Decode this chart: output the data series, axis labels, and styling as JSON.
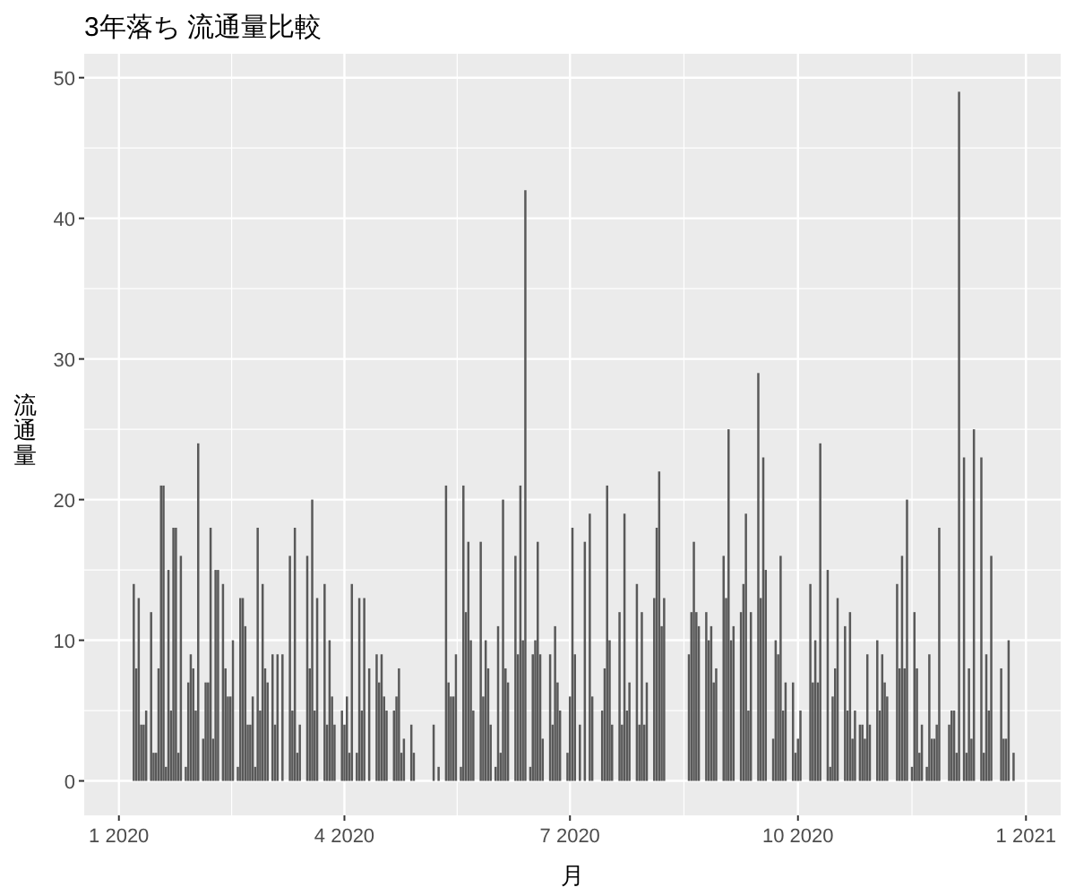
{
  "chart_data": {
    "type": "bar",
    "title": "3年落ち 流通量比較",
    "xlabel": "月",
    "ylabel": "流通量",
    "x": [
      "2020-01-07",
      "2020-01-08",
      "2020-01-09",
      "2020-01-10",
      "2020-01-11",
      "2020-01-12",
      "2020-01-14",
      "2020-01-15",
      "2020-01-16",
      "2020-01-17",
      "2020-01-18",
      "2020-01-19",
      "2020-01-20",
      "2020-01-21",
      "2020-01-22",
      "2020-01-23",
      "2020-01-24",
      "2020-01-25",
      "2020-01-26",
      "2020-01-28",
      "2020-01-29",
      "2020-01-30",
      "2020-01-31",
      "2020-02-01",
      "2020-02-02",
      "2020-02-04",
      "2020-02-05",
      "2020-02-06",
      "2020-02-07",
      "2020-02-08",
      "2020-02-09",
      "2020-02-10",
      "2020-02-12",
      "2020-02-13",
      "2020-02-14",
      "2020-02-15",
      "2020-02-16",
      "2020-02-18",
      "2020-02-19",
      "2020-02-20",
      "2020-02-21",
      "2020-02-22",
      "2020-02-23",
      "2020-02-24",
      "2020-02-25",
      "2020-02-26",
      "2020-02-27",
      "2020-02-28",
      "2020-02-29",
      "2020-03-01",
      "2020-03-03",
      "2020-03-04",
      "2020-03-05",
      "2020-03-07",
      "2020-03-10",
      "2020-03-11",
      "2020-03-12",
      "2020-03-13",
      "2020-03-14",
      "2020-03-17",
      "2020-03-18",
      "2020-03-19",
      "2020-03-20",
      "2020-03-21",
      "2020-03-24",
      "2020-03-25",
      "2020-03-26",
      "2020-03-27",
      "2020-03-28",
      "2020-03-31",
      "2020-04-01",
      "2020-04-02",
      "2020-04-03",
      "2020-04-04",
      "2020-04-06",
      "2020-04-07",
      "2020-04-08",
      "2020-04-09",
      "2020-04-11",
      "2020-04-14",
      "2020-04-15",
      "2020-04-16",
      "2020-04-17",
      "2020-04-18",
      "2020-04-21",
      "2020-04-22",
      "2020-04-23",
      "2020-04-24",
      "2020-04-25",
      "2020-04-28",
      "2020-04-29",
      "2020-05-07",
      "2020-05-09",
      "2020-05-12",
      "2020-05-13",
      "2020-05-14",
      "2020-05-15",
      "2020-05-16",
      "2020-05-18",
      "2020-05-19",
      "2020-05-20",
      "2020-05-21",
      "2020-05-22",
      "2020-05-23",
      "2020-05-26",
      "2020-05-27",
      "2020-05-28",
      "2020-05-29",
      "2020-05-30",
      "2020-06-01",
      "2020-06-02",
      "2020-06-03",
      "2020-06-04",
      "2020-06-05",
      "2020-06-06",
      "2020-06-09",
      "2020-06-10",
      "2020-06-11",
      "2020-06-12",
      "2020-06-13",
      "2020-06-15",
      "2020-06-16",
      "2020-06-17",
      "2020-06-18",
      "2020-06-19",
      "2020-06-20",
      "2020-06-23",
      "2020-06-24",
      "2020-06-25",
      "2020-06-26",
      "2020-06-27",
      "2020-06-30",
      "2020-07-01",
      "2020-07-02",
      "2020-07-03",
      "2020-07-05",
      "2020-07-07",
      "2020-07-09",
      "2020-07-10",
      "2020-07-14",
      "2020-07-15",
      "2020-07-16",
      "2020-07-17",
      "2020-07-18",
      "2020-07-21",
      "2020-07-22",
      "2020-07-23",
      "2020-07-24",
      "2020-07-25",
      "2020-07-28",
      "2020-07-29",
      "2020-07-30",
      "2020-07-31",
      "2020-08-01",
      "2020-08-04",
      "2020-08-05",
      "2020-08-06",
      "2020-08-07",
      "2020-08-08",
      "2020-08-18",
      "2020-08-19",
      "2020-08-20",
      "2020-08-21",
      "2020-08-22",
      "2020-08-25",
      "2020-08-26",
      "2020-08-27",
      "2020-08-28",
      "2020-08-29",
      "2020-09-01",
      "2020-09-02",
      "2020-09-03",
      "2020-09-04",
      "2020-09-05",
      "2020-09-08",
      "2020-09-09",
      "2020-09-10",
      "2020-09-11",
      "2020-09-12",
      "2020-09-15",
      "2020-09-16",
      "2020-09-17",
      "2020-09-18",
      "2020-09-21",
      "2020-09-22",
      "2020-09-23",
      "2020-09-24",
      "2020-09-25",
      "2020-09-26",
      "2020-09-29",
      "2020-09-30",
      "2020-10-01",
      "2020-10-02",
      "2020-10-06",
      "2020-10-07",
      "2020-10-08",
      "2020-10-09",
      "2020-10-10",
      "2020-10-13",
      "2020-10-14",
      "2020-10-15",
      "2020-10-16",
      "2020-10-17",
      "2020-10-20",
      "2020-10-21",
      "2020-10-22",
      "2020-10-23",
      "2020-10-24",
      "2020-10-26",
      "2020-10-27",
      "2020-10-28",
      "2020-10-29",
      "2020-10-30",
      "2020-11-02",
      "2020-11-03",
      "2020-11-04",
      "2020-11-05",
      "2020-11-06",
      "2020-11-10",
      "2020-11-11",
      "2020-11-12",
      "2020-11-13",
      "2020-11-14",
      "2020-11-16",
      "2020-11-17",
      "2020-11-18",
      "2020-11-19",
      "2020-11-20",
      "2020-11-22",
      "2020-11-23",
      "2020-11-24",
      "2020-11-25",
      "2020-11-26",
      "2020-11-27",
      "2020-12-01",
      "2020-12-02",
      "2020-12-03",
      "2020-12-04",
      "2020-12-05",
      "2020-12-07",
      "2020-12-08",
      "2020-12-09",
      "2020-12-10",
      "2020-12-11",
      "2020-12-14",
      "2020-12-15",
      "2020-12-16",
      "2020-12-17",
      "2020-12-18",
      "2020-12-22",
      "2020-12-23",
      "2020-12-24",
      "2020-12-25",
      "2020-12-27"
    ],
    "values": [
      14,
      8,
      13,
      4,
      4,
      5,
      12,
      2,
      2,
      8,
      21,
      21,
      1,
      15,
      5,
      18,
      18,
      2,
      16,
      1,
      7,
      9,
      8,
      5,
      24,
      3,
      7,
      7,
      18,
      3,
      15,
      15,
      14,
      8,
      6,
      6,
      10,
      1,
      13,
      13,
      11,
      4,
      4,
      6,
      1,
      18,
      5,
      14,
      8,
      7,
      9,
      4,
      9,
      9,
      16,
      5,
      18,
      2,
      4,
      16,
      8,
      20,
      5,
      13,
      14,
      4,
      10,
      6,
      4,
      5,
      4,
      6,
      2,
      14,
      2,
      13,
      5,
      13,
      8,
      9,
      7,
      9,
      6,
      5,
      5,
      6,
      8,
      2,
      3,
      4,
      2,
      4,
      1,
      21,
      7,
      6,
      6,
      9,
      1,
      21,
      12,
      17,
      10,
      5,
      17,
      6,
      10,
      8,
      4,
      1,
      11,
      2,
      20,
      8,
      7,
      16,
      9,
      21,
      10,
      42,
      1,
      9,
      10,
      17,
      9,
      3,
      9,
      4,
      11,
      7,
      5,
      2,
      6,
      18,
      9,
      4,
      17,
      19,
      6,
      5,
      8,
      21,
      10,
      4,
      12,
      4,
      19,
      5,
      7,
      14,
      4,
      12,
      4,
      7,
      13,
      18,
      22,
      11,
      13,
      9,
      12,
      17,
      12,
      11,
      12,
      10,
      11,
      7,
      8,
      16,
      13,
      25,
      10,
      11,
      12,
      14,
      19,
      5,
      12,
      29,
      13,
      23,
      15,
      3,
      10,
      9,
      16,
      5,
      7,
      7,
      2,
      3,
      5,
      14,
      7,
      10,
      7,
      24,
      15,
      1,
      6,
      8,
      13,
      11,
      5,
      12,
      3,
      5,
      4,
      4,
      3,
      9,
      4,
      10,
      5,
      9,
      7,
      6,
      14,
      8,
      16,
      8,
      20,
      1,
      12,
      8,
      2,
      4,
      1,
      9,
      3,
      3,
      4,
      18,
      4,
      5,
      5,
      2,
      49,
      23,
      2,
      8,
      3,
      25,
      23,
      2,
      9,
      5,
      16,
      8,
      3,
      3,
      10,
      2
    ],
    "color": "#595959",
    "xlim": [
      "2019-12-18",
      "2021-01-15"
    ],
    "xticks": [
      {
        "value": "2020-01-01",
        "label": "1 2020"
      },
      {
        "value": "2020-04-01",
        "label": "4 2020"
      },
      {
        "value": "2020-07-01",
        "label": "7 2020"
      },
      {
        "value": "2020-10-01",
        "label": "10 2020"
      },
      {
        "value": "2021-01-01",
        "label": "1 2021"
      }
    ],
    "ylim": [
      -2.45,
      51.7
    ],
    "yticks": [
      0,
      10,
      20,
      30,
      40,
      50
    ],
    "grid": true
  }
}
